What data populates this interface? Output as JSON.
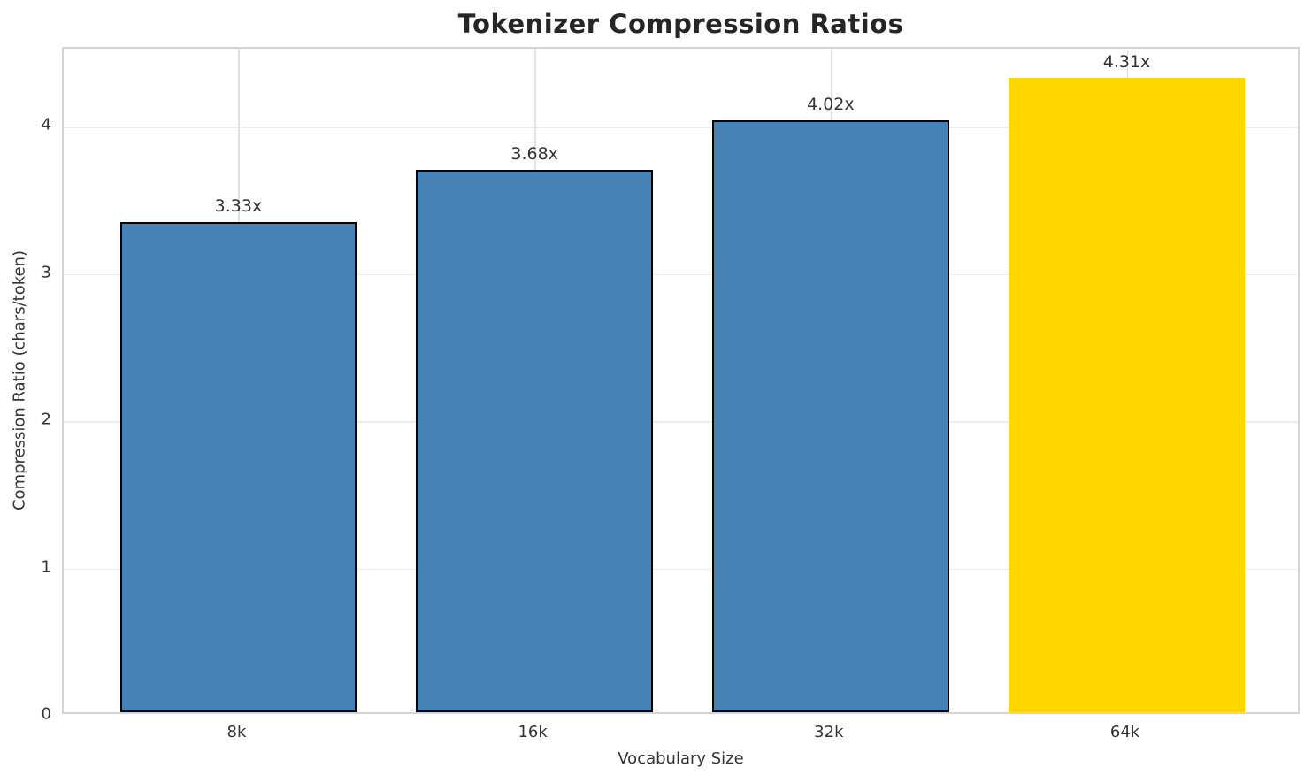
{
  "chart_data": {
    "type": "bar",
    "title": "Tokenizer Compression Ratios",
    "xlabel": "Vocabulary Size",
    "ylabel": "Compression Ratio (chars/token)",
    "categories": [
      "8k",
      "16k",
      "32k",
      "64k"
    ],
    "values": [
      3.33,
      3.68,
      4.02,
      4.31
    ],
    "value_labels": [
      "3.33x",
      "3.68x",
      "4.02x",
      "4.31x"
    ],
    "bar_colors": [
      "#4682b4",
      "#4682b4",
      "#4682b4",
      "#ffd700"
    ],
    "bar_edge_colors": [
      "#000000",
      "#000000",
      "#000000",
      "none"
    ],
    "series_color": "#4682b4",
    "highlight_color": "#ffd700",
    "yticks": [
      "0",
      "1",
      "2",
      "3",
      "4"
    ],
    "ytick_values": [
      0,
      1,
      2,
      3,
      4
    ],
    "ylim": [
      0,
      4.53
    ],
    "xlim": [
      -0.59,
      3.59
    ],
    "bar_width_units": 0.8,
    "grid": true,
    "legend": "none"
  }
}
